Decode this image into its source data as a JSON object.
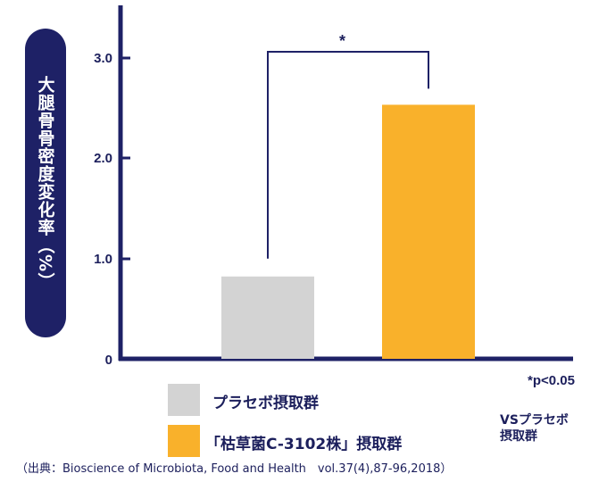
{
  "chart_data": {
    "type": "bar",
    "title": "",
    "xlabel": "",
    "ylabel": "大腿骨骨密度変化率（%）",
    "ylim": [
      0,
      3.5
    ],
    "yticks": [
      "0",
      "1.0",
      "2.0",
      "3.0"
    ],
    "categories": [
      "プラセボ摂取群",
      "「枯草菌C-3102株」摂取群"
    ],
    "values": [
      0.82,
      2.53
    ],
    "colors": [
      "#d3d3d3",
      "#f9b12b"
    ],
    "axis_color": "#1e2166",
    "grid": false,
    "legend": "bottom",
    "significance": {
      "marker": "*",
      "note": "*p<0.05"
    },
    "comparison_note": [
      "VSプラセボ",
      "摂取群"
    ]
  },
  "source": "（出典：Bioscience of Microbiota, Food and Health　vol.37(4),87-96,2018）"
}
